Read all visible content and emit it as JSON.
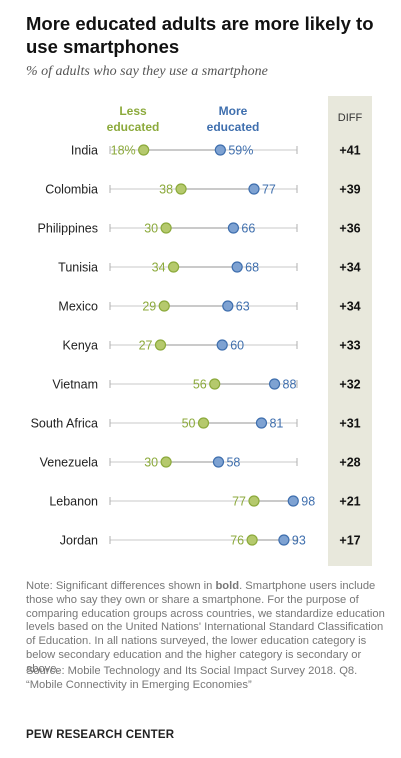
{
  "title": "More educated adults are more likely to use smartphones",
  "subtitle": "% of adults who say they use a smartphone",
  "legend": {
    "less_line1": "Less",
    "less_line2": "educated",
    "more_line1": "More",
    "more_line2": "educated"
  },
  "diff_header": "DIFF",
  "colors": {
    "less": "#8caa3c",
    "less_fill": "#b5c96d",
    "more": "#3f6fae",
    "more_fill": "#7ea2d2",
    "diff_bg": "#e8e8dc"
  },
  "chart_data": {
    "type": "dot",
    "categories": [
      "India",
      "Colombia",
      "Philippines",
      "Tunisia",
      "Mexico",
      "Kenya",
      "Vietnam",
      "South Africa",
      "Venezuela",
      "Lebanon",
      "Jordan"
    ],
    "series": [
      {
        "name": "Less educated",
        "values": [
          18,
          38,
          30,
          34,
          29,
          27,
          56,
          50,
          30,
          77,
          76
        ]
      },
      {
        "name": "More educated",
        "values": [
          59,
          77,
          66,
          68,
          63,
          60,
          88,
          81,
          58,
          98,
          93
        ]
      }
    ],
    "diff": [
      "+41",
      "+39",
      "+36",
      "+34",
      "+34",
      "+33",
      "+32",
      "+31",
      "+28",
      "+21",
      "+17"
    ],
    "xlim": [
      0,
      100
    ]
  },
  "note_prefix": "Note: Significant differences shown in ",
  "note_bold": "bold",
  "note_rest": ". Smartphone users include those who say they own or share a smartphone. For the purpose of comparing education groups across countries, we standardize education levels based on the United Nations' International Standard Classification of Education. In all nations surveyed, the lower education category is below secondary education and the higher category is secondary or above.",
  "source": "Source: Mobile Technology and Its Social Impact Survey 2018. Q8. “Mobile Connectivity in Emerging Economies”",
  "logo": "PEW RESEARCH CENTER"
}
